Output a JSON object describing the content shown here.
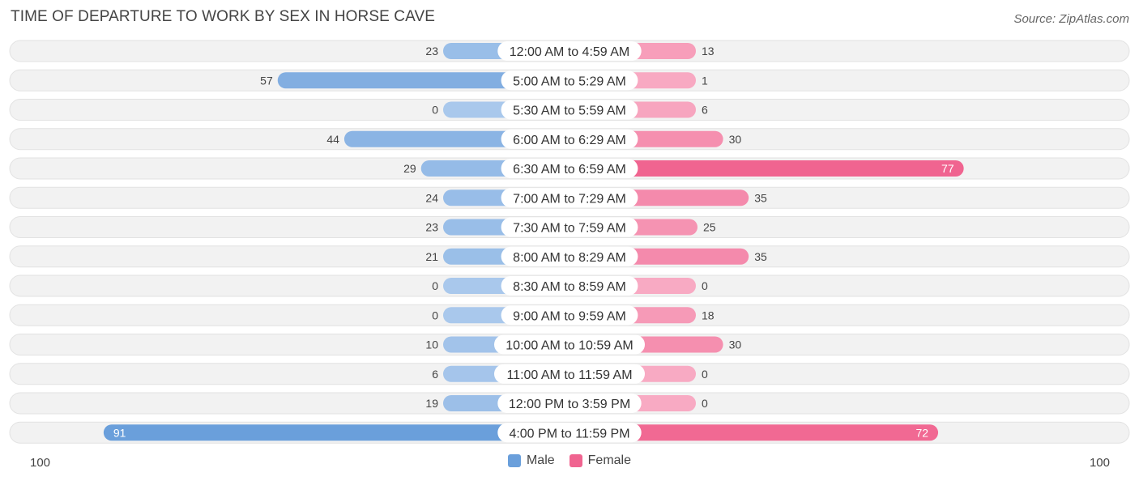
{
  "header": {
    "title": "TIME OF DEPARTURE TO WORK BY SEX IN HORSE CAVE",
    "source": "Source: ZipAtlas.com"
  },
  "legend": {
    "male_label": "Male",
    "female_label": "Female"
  },
  "axis": {
    "left_label": "100",
    "right_label": "100"
  },
  "colors": {
    "male": "#6a9fdb",
    "male_light": "#a9c8ec",
    "female": "#f06490",
    "female_light": "#f8aac3",
    "row_bg": "#f2f2f2"
  },
  "chart_data": {
    "type": "bar",
    "orientation": "horizontal-diverging",
    "title": "TIME OF DEPARTURE TO WORK BY SEX IN HORSE CAVE",
    "categories": [
      "12:00 AM to 4:59 AM",
      "5:00 AM to 5:29 AM",
      "5:30 AM to 5:59 AM",
      "6:00 AM to 6:29 AM",
      "6:30 AM to 6:59 AM",
      "7:00 AM to 7:29 AM",
      "7:30 AM to 7:59 AM",
      "8:00 AM to 8:29 AM",
      "8:30 AM to 8:59 AM",
      "9:00 AM to 9:59 AM",
      "10:00 AM to 10:59 AM",
      "11:00 AM to 11:59 AM",
      "12:00 PM to 3:59 PM",
      "4:00 PM to 11:59 PM"
    ],
    "series": [
      {
        "name": "Male",
        "values": [
          23,
          57,
          0,
          44,
          29,
          24,
          23,
          21,
          0,
          0,
          10,
          6,
          19,
          91
        ]
      },
      {
        "name": "Female",
        "values": [
          13,
          1,
          6,
          30,
          77,
          35,
          25,
          35,
          0,
          18,
          30,
          0,
          0,
          72
        ]
      }
    ],
    "xlim": [
      -100,
      100
    ],
    "legend_position": "bottom-center",
    "grid": false
  }
}
